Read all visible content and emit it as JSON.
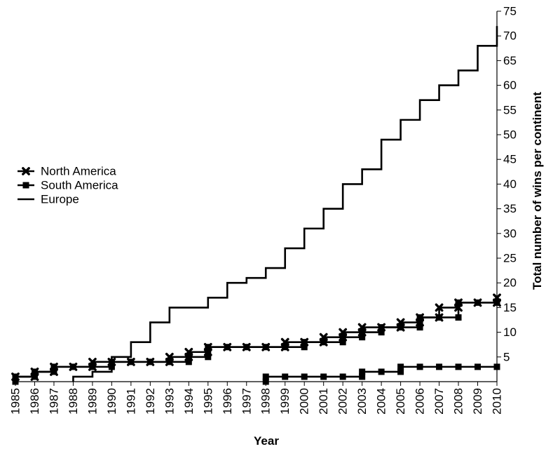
{
  "chart_data": {
    "type": "line",
    "step": true,
    "xlabel": "Year",
    "ylabel": "Total number of wins per continent",
    "x_ticks": [
      "1985",
      "1986",
      "1987",
      "1988",
      "1989",
      "1990",
      "1991",
      "1992",
      "1993",
      "1994",
      "1995",
      "1996",
      "1997",
      "1998",
      "1999",
      "2000",
      "2001",
      "2002",
      "2003",
      "2004",
      "2005",
      "2006",
      "2007",
      "2008",
      "2009",
      "2010"
    ],
    "y_ticks": [
      5,
      10,
      15,
      20,
      25,
      30,
      35,
      40,
      45,
      50,
      55,
      60,
      65,
      70,
      75
    ],
    "xlim": [
      1985,
      2010
    ],
    "ylim": [
      0,
      75
    ],
    "y_axis_position": "right",
    "grid": false,
    "legend_position": "left-middle",
    "series": [
      {
        "name": "North America",
        "marker": "x-bold",
        "color": "#000000",
        "points": [
          [
            1985,
            1
          ],
          [
            1986,
            1
          ],
          [
            1986,
            2
          ],
          [
            1987,
            2
          ],
          [
            1987,
            3
          ],
          [
            1988,
            3
          ],
          [
            1989,
            3
          ],
          [
            1989,
            4
          ],
          [
            1990,
            4
          ],
          [
            1991,
            4
          ],
          [
            1992,
            4
          ],
          [
            1993,
            4
          ],
          [
            1993,
            5
          ],
          [
            1994,
            5
          ],
          [
            1994,
            6
          ],
          [
            1995,
            6
          ],
          [
            1995,
            7
          ],
          [
            1996,
            7
          ],
          [
            1997,
            7
          ],
          [
            1998,
            7
          ],
          [
            1999,
            7
          ],
          [
            1999,
            8
          ],
          [
            2000,
            8
          ],
          [
            2001,
            8
          ],
          [
            2001,
            9
          ],
          [
            2002,
            9
          ],
          [
            2002,
            10
          ],
          [
            2003,
            10
          ],
          [
            2003,
            11
          ],
          [
            2004,
            11
          ],
          [
            2005,
            11
          ],
          [
            2005,
            12
          ],
          [
            2006,
            12
          ],
          [
            2006,
            13
          ],
          [
            2007,
            13
          ],
          [
            2007,
            15
          ],
          [
            2008,
            15
          ],
          [
            2008,
            16
          ],
          [
            2009,
            16
          ],
          [
            2010,
            16
          ],
          [
            2010,
            17
          ]
        ]
      },
      {
        "name": "South America",
        "marker": "square",
        "color": "#000000",
        "points": [
          [
            1985,
            0
          ],
          [
            1985,
            1
          ],
          [
            1986,
            1
          ],
          [
            1986,
            2
          ],
          [
            1987,
            2
          ],
          [
            1987,
            3
          ],
          [
            1988,
            3
          ],
          [
            1989,
            3
          ],
          [
            1990,
            3
          ],
          [
            1990,
            4
          ],
          [
            1991,
            4
          ],
          [
            1992,
            4
          ],
          [
            1993,
            4
          ],
          [
            1994,
            4
          ],
          [
            1994,
            5
          ],
          [
            1995,
            5
          ],
          [
            1995,
            6
          ],
          [
            1995,
            7
          ],
          [
            1996,
            7
          ],
          [
            1997,
            7
          ],
          [
            1998,
            7
          ],
          [
            1999,
            7
          ],
          [
            2000,
            7
          ],
          [
            2000,
            8
          ],
          [
            2001,
            8
          ],
          [
            2002,
            8
          ],
          [
            2002,
            9
          ],
          [
            2003,
            9
          ],
          [
            2003,
            10
          ],
          [
            2004,
            10
          ],
          [
            2004,
            11
          ],
          [
            2005,
            11
          ],
          [
            2006,
            11
          ],
          [
            2006,
            12
          ],
          [
            2006,
            13
          ],
          [
            2007,
            13
          ],
          [
            2008,
            13
          ],
          [
            2008,
            16
          ],
          [
            2009,
            16
          ],
          [
            2010,
            16
          ]
        ]
      },
      {
        "name": "South America (from 1998)",
        "marker": "square",
        "color": "#000000",
        "hidden_in_legend": true,
        "points": [
          [
            1998,
            0
          ],
          [
            1998,
            1
          ],
          [
            1999,
            1
          ],
          [
            2000,
            1
          ],
          [
            2001,
            1
          ],
          [
            2002,
            1
          ],
          [
            2003,
            1
          ],
          [
            2003,
            2
          ],
          [
            2004,
            2
          ],
          [
            2005,
            2
          ],
          [
            2005,
            3
          ],
          [
            2006,
            3
          ],
          [
            2007,
            3
          ],
          [
            2008,
            3
          ],
          [
            2009,
            3
          ],
          [
            2010,
            3
          ]
        ]
      },
      {
        "name": "Europe",
        "marker": "none",
        "color": "#000000",
        "points": [
          [
            1988,
            0
          ],
          [
            1988,
            1
          ],
          [
            1989,
            1
          ],
          [
            1989,
            2
          ],
          [
            1990,
            2
          ],
          [
            1990,
            5
          ],
          [
            1991,
            5
          ],
          [
            1991,
            8
          ],
          [
            1992,
            8
          ],
          [
            1992,
            12
          ],
          [
            1993,
            12
          ],
          [
            1993,
            15
          ],
          [
            1994,
            15
          ],
          [
            1995,
            15
          ],
          [
            1995,
            17
          ],
          [
            1996,
            17
          ],
          [
            1996,
            20
          ],
          [
            1997,
            20
          ],
          [
            1997,
            21
          ],
          [
            1998,
            21
          ],
          [
            1998,
            23
          ],
          [
            1999,
            23
          ],
          [
            1999,
            27
          ],
          [
            2000,
            27
          ],
          [
            2000,
            31
          ],
          [
            2001,
            31
          ],
          [
            2001,
            35
          ],
          [
            2002,
            35
          ],
          [
            2002,
            40
          ],
          [
            2003,
            40
          ],
          [
            2003,
            43
          ],
          [
            2004,
            43
          ],
          [
            2004,
            49
          ],
          [
            2005,
            49
          ],
          [
            2005,
            53
          ],
          [
            2006,
            53
          ],
          [
            2006,
            57
          ],
          [
            2007,
            57
          ],
          [
            2007,
            60
          ],
          [
            2008,
            60
          ],
          [
            2008,
            63
          ],
          [
            2009,
            63
          ],
          [
            2009,
            68
          ],
          [
            2010,
            68
          ],
          [
            2010,
            72
          ]
        ]
      }
    ]
  }
}
